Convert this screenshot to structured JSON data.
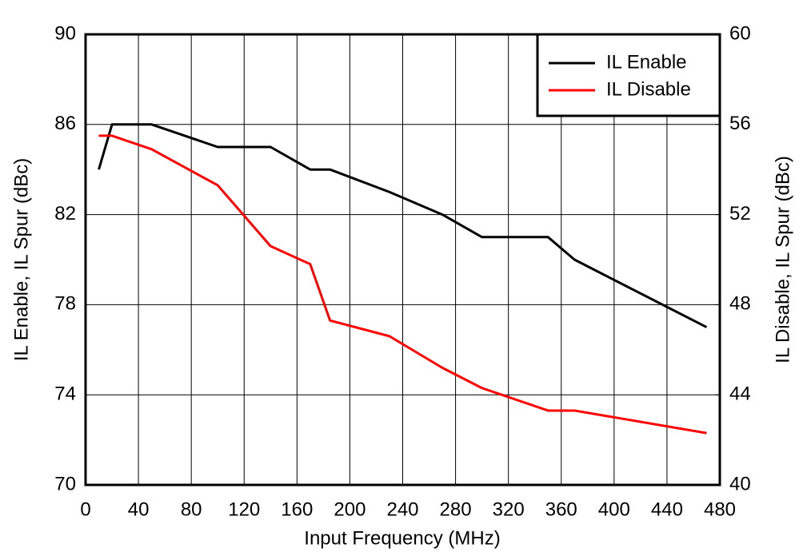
{
  "chart_data": {
    "type": "line",
    "x_label": "Input Frequency (MHz)",
    "y_label": "IL Enable, IL Spur (dBc)",
    "y2_label": "IL Disable, IL Spur (dBc)",
    "xlim": [
      0,
      480
    ],
    "xticks": [
      0,
      40,
      80,
      120,
      160,
      200,
      240,
      280,
      320,
      360,
      400,
      440,
      480
    ],
    "ylim": [
      70,
      90
    ],
    "yticks": [
      70,
      74,
      78,
      82,
      86,
      90
    ],
    "y2lim": [
      40,
      60
    ],
    "y2ticks": [
      40,
      44,
      48,
      52,
      56,
      60
    ],
    "grid": true,
    "legend": "upper right",
    "series": [
      {
        "name": "IL Enable",
        "color": "#000000",
        "x": [
          10,
          20,
          50,
          100,
          140,
          170,
          185,
          230,
          270,
          300,
          350,
          370,
          470
        ],
        "values": [
          84,
          86,
          86,
          85,
          85,
          84,
          84,
          83,
          82,
          81,
          81,
          80,
          77
        ]
      },
      {
        "name": "IL Disable",
        "color": "#ff0000",
        "axis": "y2",
        "x": [
          10,
          20,
          50,
          100,
          140,
          170,
          185,
          230,
          270,
          300,
          350,
          370,
          470
        ],
        "values": [
          55.5,
          55.5,
          54.9,
          53.3,
          50.6,
          49.8,
          47.3,
          46.6,
          45.2,
          44.3,
          43.3,
          43.3,
          42.3
        ]
      }
    ]
  }
}
